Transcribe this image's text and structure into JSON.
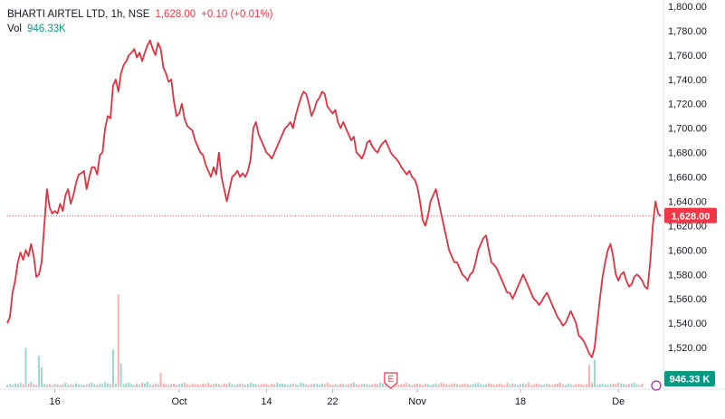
{
  "legend": {
    "symbol": "BHARTI AIRTEL LTD, 1h, NSE",
    "last": "1,628.00",
    "change": "+0.10 (+0.01%)",
    "vol_label": "Vol",
    "vol_value": "946.33K"
  },
  "price_label": "1,628.00",
  "volume_label": "946.33 K",
  "event_marker": "E",
  "colors": {
    "line": "#e0313f",
    "up": "#26a69a",
    "down": "#ef5350",
    "label_red": "#f23645",
    "label_teal": "#089981"
  },
  "chart_data": {
    "type": "line",
    "title": "BHARTI AIRTEL LTD, 1h, NSE",
    "ylim": [
      1500,
      1800
    ],
    "y_ticks": [
      "1,520.00",
      "1,540.00",
      "1,560.00",
      "1,580.00",
      "1,600.00",
      "1,620.00",
      "1,640.00",
      "1,660.00",
      "1,680.00",
      "1,700.00",
      "1,720.00",
      "1,740.00",
      "1,760.00",
      "1,780.00",
      "1,800.00"
    ],
    "x_labels": [
      {
        "label": "16",
        "index": 18
      },
      {
        "label": "Oct",
        "index": 65
      },
      {
        "label": "14",
        "index": 98
      },
      {
        "label": "22",
        "index": 123
      },
      {
        "label": "Nov",
        "index": 155
      },
      {
        "label": "18",
        "index": 194
      },
      {
        "label": "De",
        "index": 231
      }
    ],
    "current_price": 1628,
    "series": [
      {
        "name": "Price",
        "values": [
          1540,
          1545,
          1565,
          1575,
          1590,
          1598,
          1592,
          1600,
          1595,
          1605,
          1595,
          1578,
          1580,
          1590,
          1620,
          1650,
          1635,
          1630,
          1632,
          1630,
          1638,
          1632,
          1645,
          1650,
          1638,
          1645,
          1655,
          1662,
          1663,
          1665,
          1650,
          1660,
          1668,
          1668,
          1662,
          1678,
          1680,
          1700,
          1710,
          1708,
          1735,
          1740,
          1730,
          1745,
          1752,
          1755,
          1760,
          1762,
          1765,
          1758,
          1762,
          1755,
          1762,
          1768,
          1772,
          1765,
          1760,
          1770,
          1765,
          1750,
          1745,
          1738,
          1740,
          1722,
          1710,
          1712,
          1720,
          1708,
          1702,
          1700,
          1698,
          1690,
          1685,
          1680,
          1678,
          1670,
          1665,
          1660,
          1668,
          1662,
          1680,
          1660,
          1650,
          1640,
          1650,
          1660,
          1662,
          1665,
          1660,
          1663,
          1660,
          1665,
          1675,
          1700,
          1705,
          1695,
          1690,
          1685,
          1680,
          1678,
          1675,
          1680,
          1685,
          1690,
          1695,
          1700,
          1702,
          1705,
          1700,
          1710,
          1718,
          1725,
          1730,
          1728,
          1720,
          1710,
          1715,
          1722,
          1725,
          1730,
          1728,
          1718,
          1715,
          1712,
          1715,
          1705,
          1700,
          1705,
          1700,
          1695,
          1690,
          1693,
          1680,
          1678,
          1675,
          1680,
          1688,
          1690,
          1685,
          1682,
          1680,
          1685,
          1688,
          1690,
          1685,
          1680,
          1677,
          1675,
          1672,
          1668,
          1665,
          1662,
          1665,
          1660,
          1658,
          1652,
          1640,
          1625,
          1620,
          1628,
          1640,
          1645,
          1650,
          1640,
          1630,
          1620,
          1610,
          1600,
          1595,
          1590,
          1590,
          1585,
          1580,
          1578,
          1575,
          1580,
          1582,
          1590,
          1600,
          1605,
          1610,
          1612,
          1600,
          1590,
          1588,
          1585,
          1580,
          1575,
          1570,
          1565,
          1565,
          1560,
          1565,
          1570,
          1575,
          1580,
          1575,
          1570,
          1565,
          1560,
          1558,
          1555,
          1558,
          1562,
          1565,
          1560,
          1555,
          1550,
          1545,
          1542,
          1538,
          1540,
          1545,
          1550,
          1545,
          1540,
          1530,
          1528,
          1525,
          1520,
          1515,
          1512,
          1520,
          1540,
          1560,
          1578,
          1590,
          1600,
          1605,
          1595,
          1580,
          1575,
          1580,
          1582,
          1575,
          1570,
          1572,
          1578,
          1580,
          1578,
          1575,
          1570,
          1568,
          1590,
          1620,
          1640,
          1630,
          1628
        ]
      }
    ],
    "volume": [
      2,
      3,
      2,
      4,
      3,
      5,
      3,
      2,
      4,
      6,
      3,
      2,
      8,
      4,
      3,
      2,
      3,
      2,
      4,
      3,
      2,
      3,
      5,
      2,
      3,
      2,
      4,
      3,
      2,
      2,
      3,
      4,
      5,
      3,
      2,
      4,
      3,
      6,
      4,
      3,
      5,
      4,
      3,
      2,
      3,
      4,
      5,
      3,
      2,
      4,
      3,
      5,
      4,
      6,
      3,
      2,
      4,
      3,
      5,
      4,
      3,
      2,
      3,
      4,
      2,
      3,
      4,
      5,
      3,
      2,
      4,
      3,
      3,
      2,
      4,
      3,
      5,
      2,
      3,
      4,
      3,
      2,
      4,
      3,
      5,
      3,
      2,
      3,
      4,
      3,
      2,
      3,
      5,
      4,
      3,
      2,
      3,
      4,
      3,
      2,
      4,
      3,
      5,
      3,
      4,
      3,
      2,
      3,
      4,
      3,
      2,
      5,
      4,
      3,
      2,
      3,
      4,
      3,
      2,
      4,
      3,
      5,
      3,
      2,
      3,
      2,
      4,
      3,
      2,
      3,
      4,
      5,
      3,
      2,
      3,
      4,
      3,
      2,
      3,
      4,
      3,
      5,
      4,
      3,
      2,
      3,
      4,
      3,
      2,
      3,
      4,
      5,
      3,
      2,
      3,
      4,
      3,
      2,
      4,
      3,
      2,
      3,
      4,
      3,
      5,
      4,
      3,
      2,
      3,
      4,
      3,
      2,
      3,
      4,
      3,
      2,
      3,
      4,
      5,
      3,
      2,
      3,
      4,
      3,
      2,
      3,
      4,
      3,
      2,
      5,
      3,
      4,
      3,
      2,
      3,
      4,
      3,
      5,
      2,
      3,
      4,
      3,
      2,
      3,
      4,
      3,
      2,
      3,
      4,
      5,
      3,
      2,
      4,
      3,
      2,
      3,
      4,
      3,
      2,
      3,
      4,
      5,
      3,
      2,
      3,
      4,
      3,
      2,
      3,
      4,
      3,
      5,
      4,
      3,
      2,
      3,
      4,
      5,
      3,
      2,
      4
    ],
    "volume_spikes": [
      {
        "index": 7,
        "value": 50
      },
      {
        "index": 12,
        "value": 40
      },
      {
        "index": 13,
        "value": 25
      },
      {
        "index": 40,
        "value": 48
      },
      {
        "index": 42,
        "value": 120
      },
      {
        "index": 43,
        "value": 30
      },
      {
        "index": 58,
        "value": 18
      },
      {
        "index": 220,
        "value": 28
      },
      {
        "index": 222,
        "value": 35
      }
    ]
  }
}
